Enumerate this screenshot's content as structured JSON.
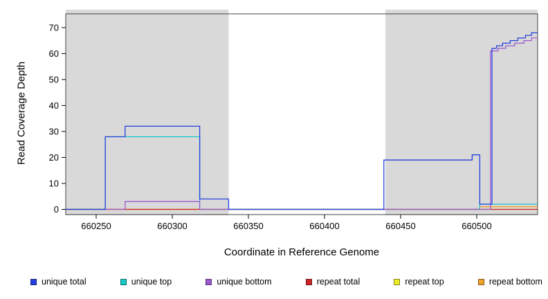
{
  "chart_data": {
    "type": "line",
    "subtype": "step-coverage",
    "title": "",
    "xlabel": "Coordinate in Reference Genome",
    "ylabel": "Read Coverage Depth",
    "xlim": [
      660230,
      660540
    ],
    "ylim": [
      -2,
      75.3
    ],
    "x_ticks": [
      660250,
      660300,
      660350,
      660400,
      660450,
      660500
    ],
    "y_ticks": [
      0,
      10,
      20,
      30,
      40,
      50,
      60,
      70
    ],
    "grid": false,
    "legend_position": "bottom",
    "background_color": "#ffffff",
    "shaded_region_color": "#d9d9d9",
    "shaded_regions": [
      {
        "x0": 660230,
        "x1": 660337
      },
      {
        "x0": 660440,
        "x1": 660540
      }
    ],
    "series": [
      {
        "name": "unique total",
        "color": "#2340dd",
        "steps": [
          [
            660230,
            0
          ],
          [
            660256,
            28
          ],
          [
            660269,
            32
          ],
          [
            660318,
            4
          ],
          [
            660337,
            0
          ],
          [
            660439,
            19
          ],
          [
            660497,
            21
          ],
          [
            660502,
            2
          ],
          [
            660510,
            62
          ],
          [
            660513,
            63
          ],
          [
            660517,
            64
          ],
          [
            660522,
            65
          ],
          [
            660527,
            66
          ],
          [
            660532,
            67
          ],
          [
            660536,
            68
          ],
          [
            660540,
            68
          ]
        ]
      },
      {
        "name": "unique top",
        "color": "#16c8c8",
        "steps": [
          [
            660230,
            0
          ],
          [
            660256,
            28
          ],
          [
            660318,
            0
          ],
          [
            660502,
            2
          ],
          [
            660540,
            2
          ]
        ]
      },
      {
        "name": "unique bottom",
        "color": "#9b59d0",
        "steps": [
          [
            660230,
            0
          ],
          [
            660269,
            3
          ],
          [
            660318,
            0
          ],
          [
            660509,
            61
          ],
          [
            660514,
            62
          ],
          [
            660519,
            63
          ],
          [
            660525,
            64
          ],
          [
            660531,
            65
          ],
          [
            660536,
            66
          ],
          [
            660540,
            66
          ]
        ]
      },
      {
        "name": "repeat total",
        "color": "#cc2525",
        "steps": [
          [
            660230,
            0
          ],
          [
            660540,
            0
          ]
        ]
      },
      {
        "name": "repeat top",
        "color": "#eded26",
        "steps": [
          [
            660230,
            0
          ],
          [
            660540,
            0
          ]
        ]
      },
      {
        "name": "repeat bottom",
        "color": "#f0a32e",
        "steps": [
          [
            660230,
            0
          ],
          [
            660502,
            1
          ],
          [
            660540,
            1
          ]
        ]
      }
    ],
    "draw_order": [
      "repeat top",
      "repeat bottom",
      "repeat total",
      "unique top",
      "unique bottom",
      "unique total"
    ]
  }
}
